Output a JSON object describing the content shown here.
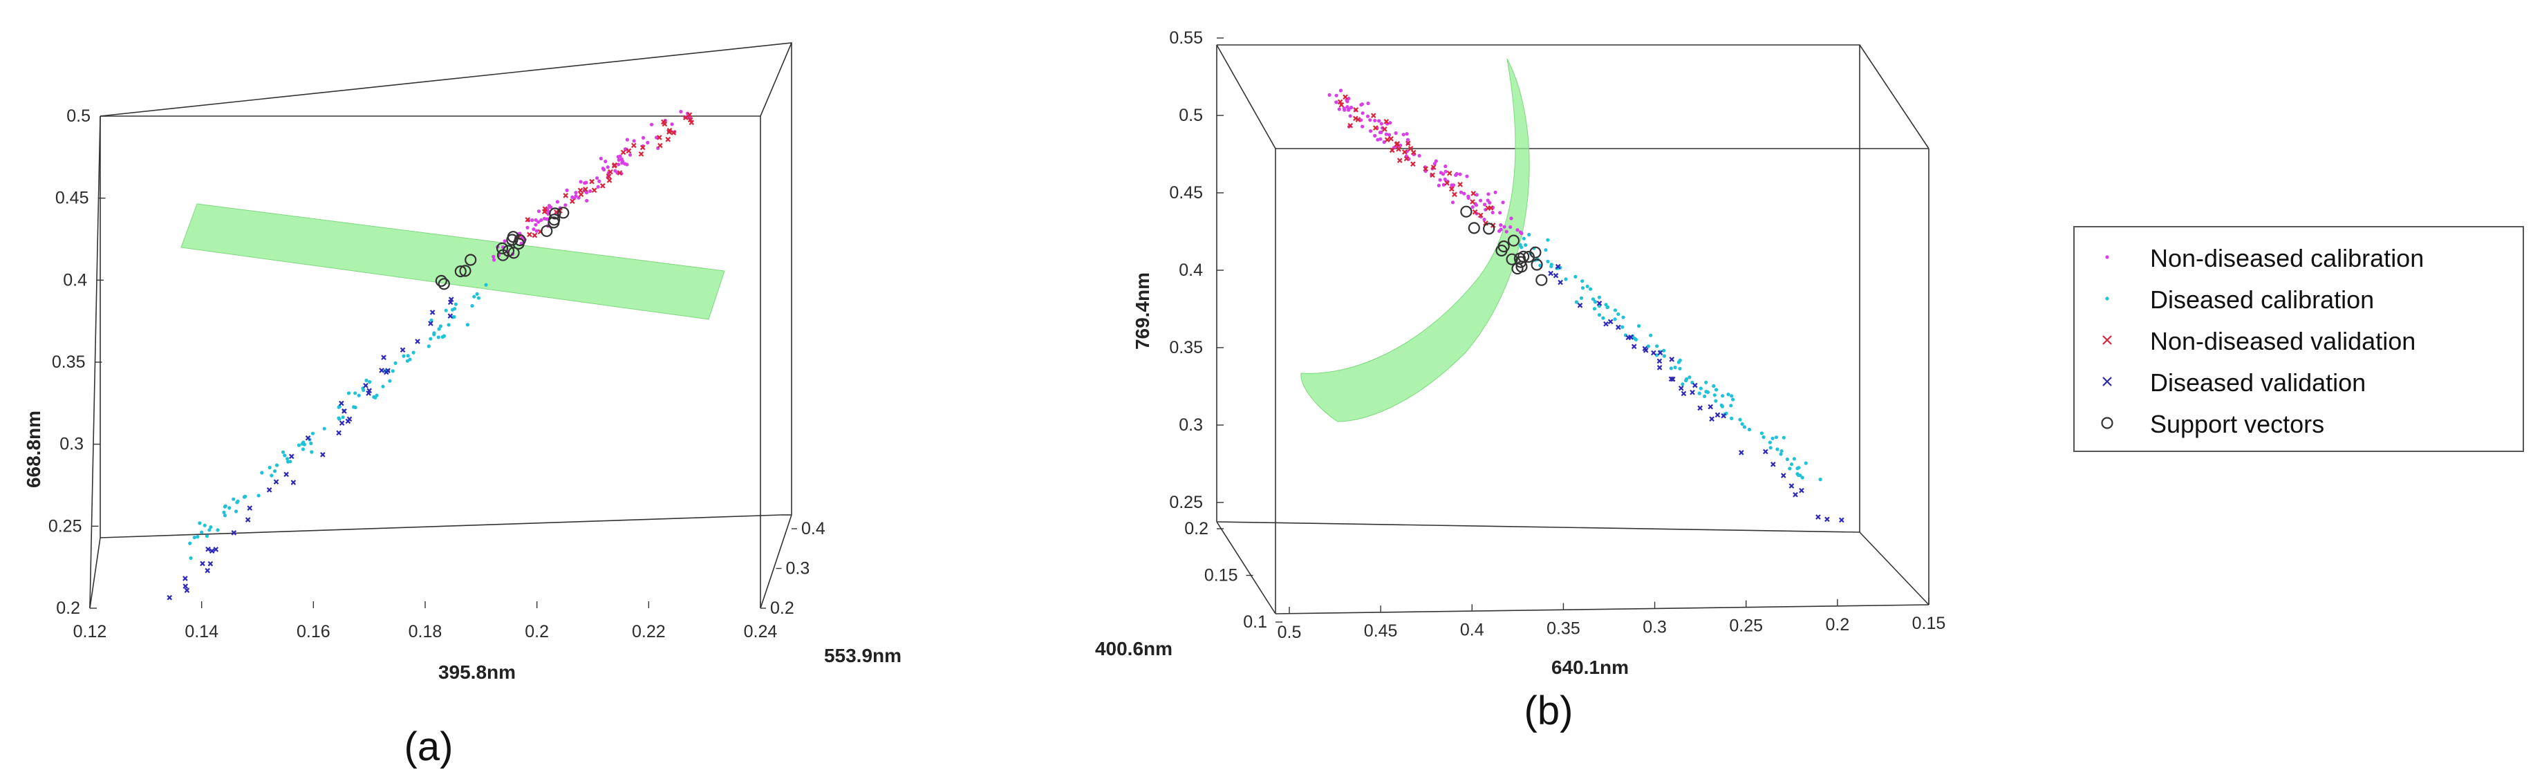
{
  "colors": {
    "non_diseased_calibration": "#d83fe6",
    "diseased_calibration": "#1fc2d6",
    "non_diseased_validation": "#d9243a",
    "diseased_validation": "#2c28b8",
    "support_vectors": "#333333",
    "decision_surface": "#92ee92"
  },
  "legend": {
    "items": [
      {
        "key": "non_diseased_calibration",
        "label": "Non-diseased calibration",
        "marker": "dot"
      },
      {
        "key": "diseased_calibration",
        "label": "Diseased calibration",
        "marker": "dot"
      },
      {
        "key": "non_diseased_validation",
        "label": "Non-diseased validation",
        "marker": "x"
      },
      {
        "key": "diseased_validation",
        "label": "Diseased validation",
        "marker": "x"
      },
      {
        "key": "support_vectors",
        "label": "Support vectors",
        "marker": "circle"
      }
    ]
  },
  "chart_data": [
    {
      "panel": "(a)",
      "type": "scatter",
      "dimensions": "3d",
      "xlabel": "395.8nm",
      "ylabel": "553.9nm",
      "zlabel": "668.8nm",
      "xlim": [
        0.12,
        0.24
      ],
      "ylim": [
        0.2,
        0.4
      ],
      "zlim": [
        0.2,
        0.5
      ],
      "xticks": [
        "0.12",
        "0.14",
        "0.16",
        "0.18",
        "0.2",
        "0.22",
        "0.24"
      ],
      "yticks": [
        "0.2",
        "0.3",
        "0.4"
      ],
      "zticks": [
        "0.2",
        "0.25",
        "0.3",
        "0.35",
        "0.4",
        "0.45",
        "0.5"
      ],
      "decision_surface": "plane",
      "series": [
        {
          "key": "non_diseased_calibration",
          "name": "Non-diseased calibration",
          "marker": "dot",
          "trend": {
            "x": [
              0.19,
              0.228
            ],
            "z": [
              0.41,
              0.505
            ]
          },
          "count": 95
        },
        {
          "key": "diseased_calibration",
          "name": "Diseased calibration",
          "marker": "dot",
          "trend": {
            "x": [
              0.135,
              0.19
            ],
            "z": [
              0.24,
              0.395
            ]
          },
          "count": 95
        },
        {
          "key": "non_diseased_validation",
          "name": "Non-diseased validation",
          "marker": "x",
          "trend": {
            "x": [
              0.195,
              0.232
            ],
            "z": [
              0.425,
              0.505
            ]
          },
          "count": 40
        },
        {
          "key": "diseased_validation",
          "name": "Diseased validation",
          "marker": "x",
          "trend": {
            "x": [
              0.132,
              0.185
            ],
            "z": [
              0.205,
              0.39
            ]
          },
          "count": 40
        },
        {
          "key": "support_vectors",
          "name": "Support vectors",
          "marker": "circle",
          "trend": {
            "x": [
              0.18,
              0.205
            ],
            "z": [
              0.395,
              0.44
            ]
          },
          "count": 18
        }
      ]
    },
    {
      "panel": "(b)",
      "type": "scatter",
      "dimensions": "3d",
      "xlabel": "640.1nm",
      "ylabel": "400.6nm",
      "zlabel": "769.4nm",
      "xlim": [
        0.5,
        0.15
      ],
      "ylim": [
        0.1,
        0.2
      ],
      "zlim": [
        0.25,
        0.55
      ],
      "xticks": [
        "0.5",
        "0.45",
        "0.4",
        "0.35",
        "0.3",
        "0.25",
        "0.2",
        "0.15"
      ],
      "yticks": [
        "0.1",
        "0.15",
        "0.2"
      ],
      "zticks": [
        "0.25",
        "0.3",
        "0.35",
        "0.4",
        "0.45",
        "0.5",
        "0.55"
      ],
      "decision_surface": "curved",
      "series": [
        {
          "key": "non_diseased_calibration",
          "name": "Non-diseased calibration",
          "marker": "dot",
          "trend": {
            "x": [
              0.47,
              0.37
            ],
            "z": [
              0.525,
              0.435
            ]
          },
          "count": 110
        },
        {
          "key": "diseased_calibration",
          "name": "Diseased calibration",
          "marker": "dot",
          "trend": {
            "x": [
              0.37,
              0.21
            ],
            "z": [
              0.43,
              0.27
            ]
          },
          "count": 110
        },
        {
          "key": "non_diseased_validation",
          "name": "Non-diseased validation",
          "marker": "x",
          "trend": {
            "x": [
              0.47,
              0.38
            ],
            "z": [
              0.52,
              0.44
            ]
          },
          "count": 40
        },
        {
          "key": "diseased_validation",
          "name": "Diseased validation",
          "marker": "x",
          "trend": {
            "x": [
              0.36,
              0.2
            ],
            "z": [
              0.42,
              0.24
            ]
          },
          "count": 40
        },
        {
          "key": "support_vectors",
          "name": "Support vectors",
          "marker": "circle",
          "trend": {
            "x": [
              0.4,
              0.36
            ],
            "z": [
              0.45,
              0.405
            ]
          },
          "count": 16
        }
      ]
    }
  ]
}
